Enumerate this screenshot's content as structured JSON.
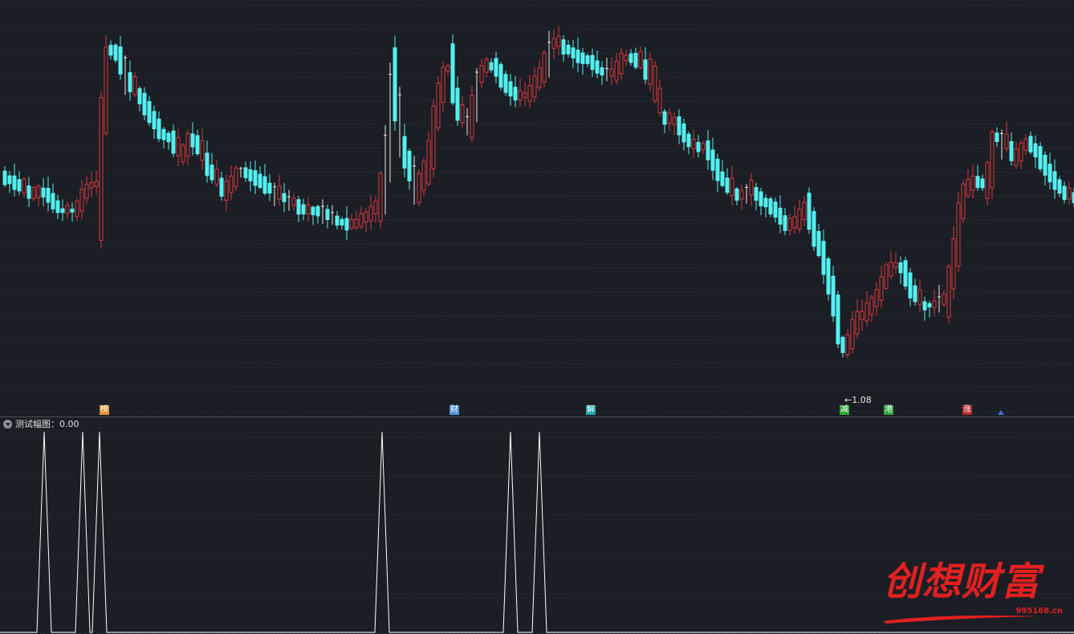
{
  "colors": {
    "background": "#1b1e25",
    "rise": "#d8383c",
    "fall": "#54f0f0",
    "doji": "#e8e8e8",
    "gridline": "#3a3e48",
    "indicator_line": "#ffffff",
    "watermark": "#e12020"
  },
  "main_chart": {
    "low_marker_label": "1.08",
    "low_marker_icon": "left-arrow-icon"
  },
  "events": [
    {
      "label": "榜",
      "color": "#e3902e"
    },
    {
      "label": "财",
      "color": "#4f93d8"
    },
    {
      "label": "解",
      "color": "#1ea7a7"
    },
    {
      "label": "减",
      "color": "#2fa33a"
    },
    {
      "label": "港",
      "color": "#2fa33a"
    },
    {
      "label": "涨",
      "color": "#b42828"
    }
  ],
  "sub_indicator": {
    "title": "测试幅图",
    "separator": "：",
    "value": "0.00"
  },
  "watermark": {
    "title": "创想财富",
    "url": "995168.cn"
  }
}
